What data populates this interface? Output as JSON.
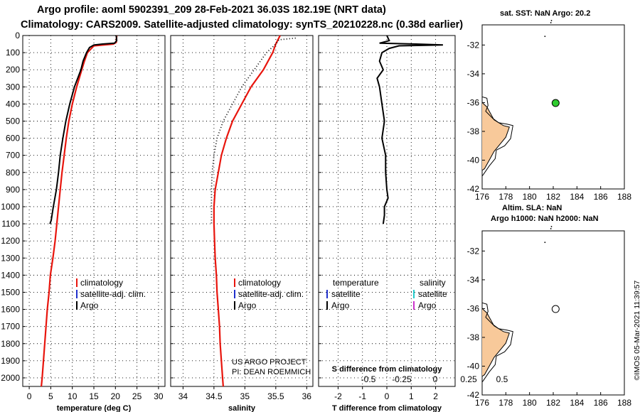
{
  "header": {
    "line1": "Argo profile: aoml 5902391_209 28-Feb-2021 36.03S 182.19E (NRT data)",
    "line2": "Climatology: CARS2009. Satellite-adjusted climatology: synTS_20210228.nc (0.38d earlier)"
  },
  "right_panel": {
    "sst_label": "sat. SST: NaN Argo: 20.2",
    "altim_label": "Altim. SLA: NaN",
    "h_label": "Argo h1000: NaN h2000: NaN",
    "stamp": "©IMOS 05-Mar-2021 11:39:57"
  },
  "project": {
    "line1": "US ARGO PROJECT",
    "line2": "PI: DEAN ROEMMICH"
  },
  "colors": {
    "climatology": "#e8150d",
    "argo": "#000000",
    "sat_adj": "#1f2fcc",
    "sat_sal": "#22cccc",
    "argo_sal": "#cc33cc",
    "land": "#f8c99a"
  },
  "chart_data": [
    {
      "type": "line",
      "title": "",
      "xlabel": "temperature (deg C)",
      "ylabel": "",
      "xlim": [
        -1.5,
        31.5
      ],
      "ylim": [
        2050,
        0
      ],
      "xticks": [
        "0",
        "5",
        "10",
        "15",
        "20",
        "25",
        "30"
      ],
      "yticks": [
        "0",
        "100",
        "200",
        "300",
        "400",
        "500",
        "600",
        "700",
        "800",
        "900",
        "1000",
        "1100",
        "1200",
        "1300",
        "1400",
        "1500",
        "1600",
        "1700",
        "1800",
        "1900",
        "2000"
      ],
      "legend": [
        {
          "label": "climatology",
          "color": "#e8150d"
        },
        {
          "label": "satellite-adj. clim.",
          "color": "#1f2fcc"
        },
        {
          "label": "Argo",
          "color": "#000000"
        }
      ],
      "series": [
        {
          "name": "climatology",
          "color": "#e8150d",
          "style": "solid",
          "points": [
            [
              20.3,
              0
            ],
            [
              20.2,
              40
            ],
            [
              19.5,
              50
            ],
            [
              15,
              60
            ],
            [
              13.5,
              100
            ],
            [
              12.8,
              150
            ],
            [
              12.2,
              200
            ],
            [
              11,
              300
            ],
            [
              10,
              400
            ],
            [
              9.2,
              500
            ],
            [
              8.6,
              600
            ],
            [
              8.1,
              700
            ],
            [
              7.6,
              800
            ],
            [
              7.2,
              900
            ],
            [
              6.8,
              1000
            ],
            [
              6.4,
              1100
            ],
            [
              6,
              1200
            ],
            [
              5.5,
              1300
            ],
            [
              4.9,
              1400
            ],
            [
              4.6,
              1500
            ],
            [
              4.2,
              1600
            ],
            [
              3.9,
              1700
            ],
            [
              3.6,
              1800
            ],
            [
              3.3,
              1900
            ],
            [
              3,
              2000
            ],
            [
              2.8,
              2050
            ]
          ]
        },
        {
          "name": "Argo",
          "color": "#000000",
          "style": "solid",
          "points": [
            [
              20.2,
              0
            ],
            [
              20.3,
              30
            ],
            [
              19.8,
              45
            ],
            [
              17,
              50
            ],
            [
              15,
              55
            ],
            [
              14,
              70
            ],
            [
              13.3,
              100
            ],
            [
              12.5,
              150
            ],
            [
              12,
              200
            ],
            [
              10.5,
              300
            ],
            [
              9.4,
              400
            ],
            [
              8.5,
              500
            ],
            [
              7.8,
              600
            ],
            [
              7.2,
              700
            ],
            [
              6.8,
              800
            ],
            [
              6.3,
              900
            ],
            [
              5.6,
              1000
            ],
            [
              5.1,
              1080
            ],
            [
              4.8,
              1100
            ]
          ]
        }
      ]
    },
    {
      "type": "line",
      "title": "",
      "xlabel": "salinity",
      "ylabel": "",
      "xlim": [
        33.8,
        36.1
      ],
      "ylim": [
        2050,
        0
      ],
      "xticks": [
        "34",
        "34.5",
        "35",
        "35.5",
        "36"
      ],
      "yticks": [],
      "legend": [
        {
          "label": "climatology",
          "color": "#e8150d"
        },
        {
          "label": "satellite-adj. clim.",
          "color": "#1f2fcc"
        },
        {
          "label": "Argo",
          "color": "#000000"
        }
      ],
      "series": [
        {
          "name": "climatology",
          "color": "#e8150d",
          "style": "solid",
          "points": [
            [
              35.57,
              0
            ],
            [
              35.5,
              50
            ],
            [
              35.45,
              100
            ],
            [
              35.3,
              200
            ],
            [
              35.1,
              300
            ],
            [
              34.95,
              400
            ],
            [
              34.8,
              500
            ],
            [
              34.7,
              600
            ],
            [
              34.62,
              700
            ],
            [
              34.57,
              800
            ],
            [
              34.52,
              900
            ],
            [
              34.5,
              1000
            ],
            [
              34.5,
              1100
            ],
            [
              34.51,
              1200
            ],
            [
              34.52,
              1300
            ],
            [
              34.54,
              1400
            ],
            [
              34.55,
              1500
            ],
            [
              34.57,
              1600
            ],
            [
              34.59,
              1700
            ],
            [
              34.6,
              1800
            ],
            [
              34.62,
              1900
            ],
            [
              34.64,
              2000
            ],
            [
              34.65,
              2050
            ]
          ]
        },
        {
          "name": "Argo",
          "color": "#000000",
          "style": "dotted",
          "points": [
            [
              35.82,
              15
            ],
            [
              35.55,
              25
            ],
            [
              35.5,
              50
            ],
            [
              35.35,
              100
            ],
            [
              35.25,
              150
            ],
            [
              35.15,
              200
            ],
            [
              34.95,
              300
            ],
            [
              34.8,
              400
            ],
            [
              34.65,
              500
            ],
            [
              34.55,
              600
            ],
            [
              34.5,
              700
            ],
            [
              34.47,
              800
            ],
            [
              34.46,
              900
            ],
            [
              34.46,
              1000
            ],
            [
              34.46,
              1100
            ]
          ]
        }
      ]
    },
    {
      "type": "line",
      "title": "",
      "xlabel": "T difference from climatology",
      "ylabel": "",
      "xlim": [
        -2.8,
        2.8
      ],
      "ylim": [
        2050,
        0
      ],
      "xticks": [
        "-2",
        "-1",
        "0",
        "1",
        "2"
      ],
      "yticks": [],
      "secondary_xlabel": "S difference from climatology",
      "secondary_xticks": [
        "-0.5",
        "-0.25",
        "0",
        "0.25",
        "0.5"
      ],
      "legend": [
        {
          "label": "temperature",
          "color": ""
        },
        {
          "label": "satellite",
          "color": "#1f2fcc"
        },
        {
          "label": "Argo",
          "color": "#000000"
        },
        {
          "label": "salinity",
          "color": ""
        },
        {
          "label": "satellite",
          "color": "#22cccc"
        },
        {
          "label": "Argo",
          "color": "#cc33cc"
        }
      ],
      "series": [
        {
          "name": "T difference Argo",
          "color": "#000000",
          "style": "solid",
          "points": [
            [
              0,
              0
            ],
            [
              0.1,
              30
            ],
            [
              -0.3,
              45
            ],
            [
              1.2,
              50
            ],
            [
              2.3,
              55
            ],
            [
              0.5,
              60
            ],
            [
              0.1,
              75
            ],
            [
              -0.2,
              100
            ],
            [
              -0.3,
              150
            ],
            [
              -0.15,
              200
            ],
            [
              -0.4,
              250
            ],
            [
              -0.3,
              300
            ],
            [
              -0.2,
              400
            ],
            [
              -0.1,
              500
            ],
            [
              -0.2,
              600
            ],
            [
              -0.05,
              700
            ],
            [
              -0.05,
              800
            ],
            [
              0,
              900
            ],
            [
              0.05,
              950
            ],
            [
              -0.1,
              1000
            ],
            [
              -0.1,
              1050
            ],
            [
              -0.15,
              1100
            ]
          ]
        }
      ]
    }
  ],
  "maps": [
    {
      "name": "sst-map",
      "xticks": [
        "176",
        "178",
        "180",
        "182",
        "184",
        "186",
        "188"
      ],
      "yticks": [
        "-32",
        "-34",
        "-36",
        "-38",
        "-40",
        "-42"
      ],
      "marker": "filled"
    },
    {
      "name": "altim-map",
      "xticks": [
        "176",
        "178",
        "180",
        "182",
        "184",
        "186",
        "188"
      ],
      "yticks": [
        "-32",
        "-34",
        "-36",
        "-38",
        "-40",
        "-42"
      ],
      "marker": "open"
    }
  ]
}
